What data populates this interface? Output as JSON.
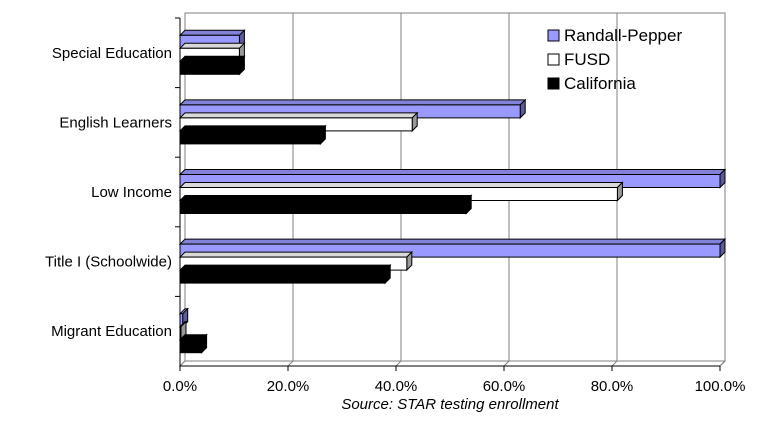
{
  "chart_data": {
    "type": "bar",
    "orientation": "horizontal",
    "categories": [
      "Special Education",
      "English Learners",
      "Low Income",
      "Title I (Schoolwide)",
      "Migrant Education"
    ],
    "series": [
      {
        "name": "Randall-Pepper",
        "values": [
          11,
          63,
          100,
          100,
          0.5
        ],
        "color": "#9999ff"
      },
      {
        "name": "FUSD",
        "values": [
          11,
          43,
          81,
          42,
          0
        ],
        "color": "#ffffff"
      },
      {
        "name": "California",
        "values": [
          11,
          26,
          53,
          38,
          4
        ],
        "color": "#000000"
      }
    ],
    "xlim": [
      0,
      100
    ],
    "x_ticks": [
      "0.0%",
      "20.0%",
      "40.0%",
      "60.0%",
      "80.0%",
      "100.0%"
    ],
    "grid": true,
    "legend_placement": "top-right",
    "caption": "Source: STAR testing enrollment"
  }
}
